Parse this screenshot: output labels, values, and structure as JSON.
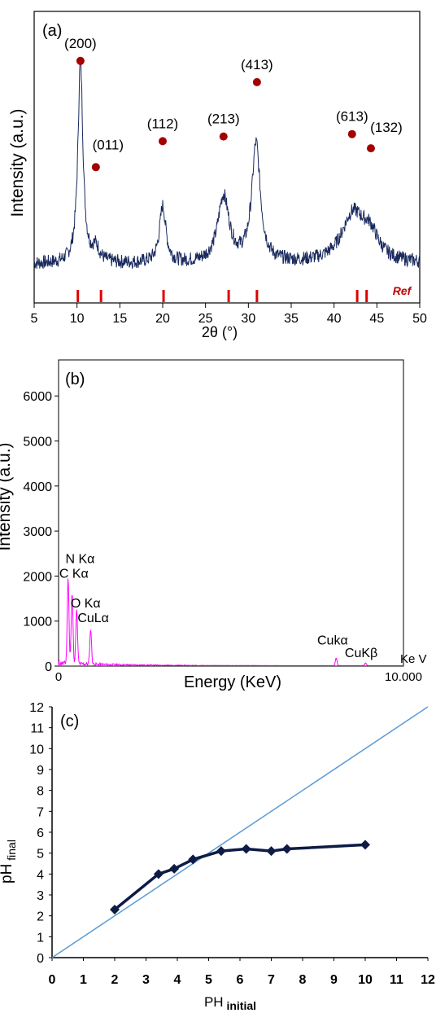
{
  "panels": {
    "a": {
      "label": "(a)"
    },
    "b": {
      "label": "(b)"
    },
    "c": {
      "label": "(c)"
    }
  },
  "chart_data": [
    {
      "type": "line",
      "panel": "(a)",
      "xlabel": "2θ (°)",
      "ylabel": "Intensity (a.u.)",
      "xlim": [
        5,
        50
      ],
      "xticks": [
        5,
        10,
        15,
        20,
        25,
        30,
        35,
        40,
        45,
        50
      ],
      "peaks": [
        {
          "x": 10.4,
          "height": 0.86,
          "width": 0.35
        },
        {
          "x": 12.2,
          "height": 0.06,
          "width": 0.5
        },
        {
          "x": 20.0,
          "height": 0.24,
          "width": 0.45
        },
        {
          "x": 27.1,
          "height": 0.28,
          "width": 0.8
        },
        {
          "x": 30.9,
          "height": 0.5,
          "width": 0.6
        },
        {
          "x": 42.2,
          "height": 0.2,
          "width": 1.6
        },
        {
          "x": 44.2,
          "height": 0.1,
          "width": 1.2
        }
      ],
      "markers": [
        {
          "label": "(200)",
          "x": 10.4,
          "level": 0.88
        },
        {
          "label": "(011)",
          "x": 12.2,
          "level": 0.43
        },
        {
          "label": "(112)",
          "x": 20.0,
          "level": 0.54
        },
        {
          "label": "(213)",
          "x": 27.1,
          "level": 0.56
        },
        {
          "label": "(413)",
          "x": 31.0,
          "level": 0.79
        },
        {
          "label": "(613)",
          "x": 42.1,
          "level": 0.57
        },
        {
          "label": "(132)",
          "x": 44.3,
          "level": 0.51
        }
      ],
      "reference_lines": [
        10.1,
        12.8,
        20.1,
        27.7,
        31.0,
        42.7,
        43.8
      ],
      "reference_label": "Ref",
      "colors": {
        "line": "#1a2a5e",
        "marker": "#a40000",
        "ref": "#e00000"
      }
    },
    {
      "type": "line",
      "panel": "(b)",
      "xlabel": "Energy (KeV)",
      "ylabel": "Intensity (a.u.)",
      "ylim": [
        0,
        6800
      ],
      "yticks": [
        0,
        1000,
        2000,
        3000,
        4000,
        5000,
        6000
      ],
      "xlim": [
        0,
        10
      ],
      "xtick_labels": [
        "0",
        "10.000"
      ],
      "unit_label": "Ke V",
      "peaks": [
        {
          "x": 0.277,
          "y": 1900
        },
        {
          "x": 0.392,
          "y": 1550
        },
        {
          "x": 0.525,
          "y": 1200
        },
        {
          "x": 0.93,
          "y": 780
        },
        {
          "x": 8.05,
          "y": 170
        },
        {
          "x": 8.9,
          "y": 60
        }
      ],
      "annotations": [
        {
          "text": "N Kα",
          "x": 0.2,
          "y": 2290
        },
        {
          "text": "C Kα",
          "x": 0.02,
          "y": 1960
        },
        {
          "text": "O Kα",
          "x": 0.35,
          "y": 1300
        },
        {
          "text": "CuLα",
          "x": 0.55,
          "y": 980
        },
        {
          "text": "Cukα",
          "x": 7.5,
          "y": 480
        },
        {
          "text": "CuKβ",
          "x": 8.3,
          "y": 200
        }
      ],
      "colors": {
        "line": "#ff00ff"
      }
    },
    {
      "type": "line",
      "panel": "(c)",
      "xlabel": "PH",
      "xlabel_sub": "initial",
      "ylabel": "pH",
      "ylabel_sub": "final",
      "xlim": [
        0,
        12
      ],
      "ylim": [
        0,
        12
      ],
      "xticks": [
        0,
        1,
        2,
        3,
        4,
        5,
        6,
        7,
        8,
        9,
        10,
        11,
        12
      ],
      "yticks": [
        0,
        1,
        2,
        3,
        4,
        5,
        6,
        7,
        8,
        9,
        10,
        11,
        12
      ],
      "series": [
        {
          "x": [
            2,
            3.4,
            3.9,
            4.5,
            5.4,
            6.2,
            7,
            7.5,
            10
          ],
          "y": [
            2.3,
            4.0,
            4.25,
            4.7,
            5.1,
            5.2,
            5.1,
            5.2,
            5.4
          ]
        }
      ],
      "reference_line": {
        "x": [
          0,
          12
        ],
        "y": [
          0,
          12
        ]
      },
      "colors": {
        "series": "#0d1b45",
        "reference": "#5b9bd5"
      }
    }
  ]
}
